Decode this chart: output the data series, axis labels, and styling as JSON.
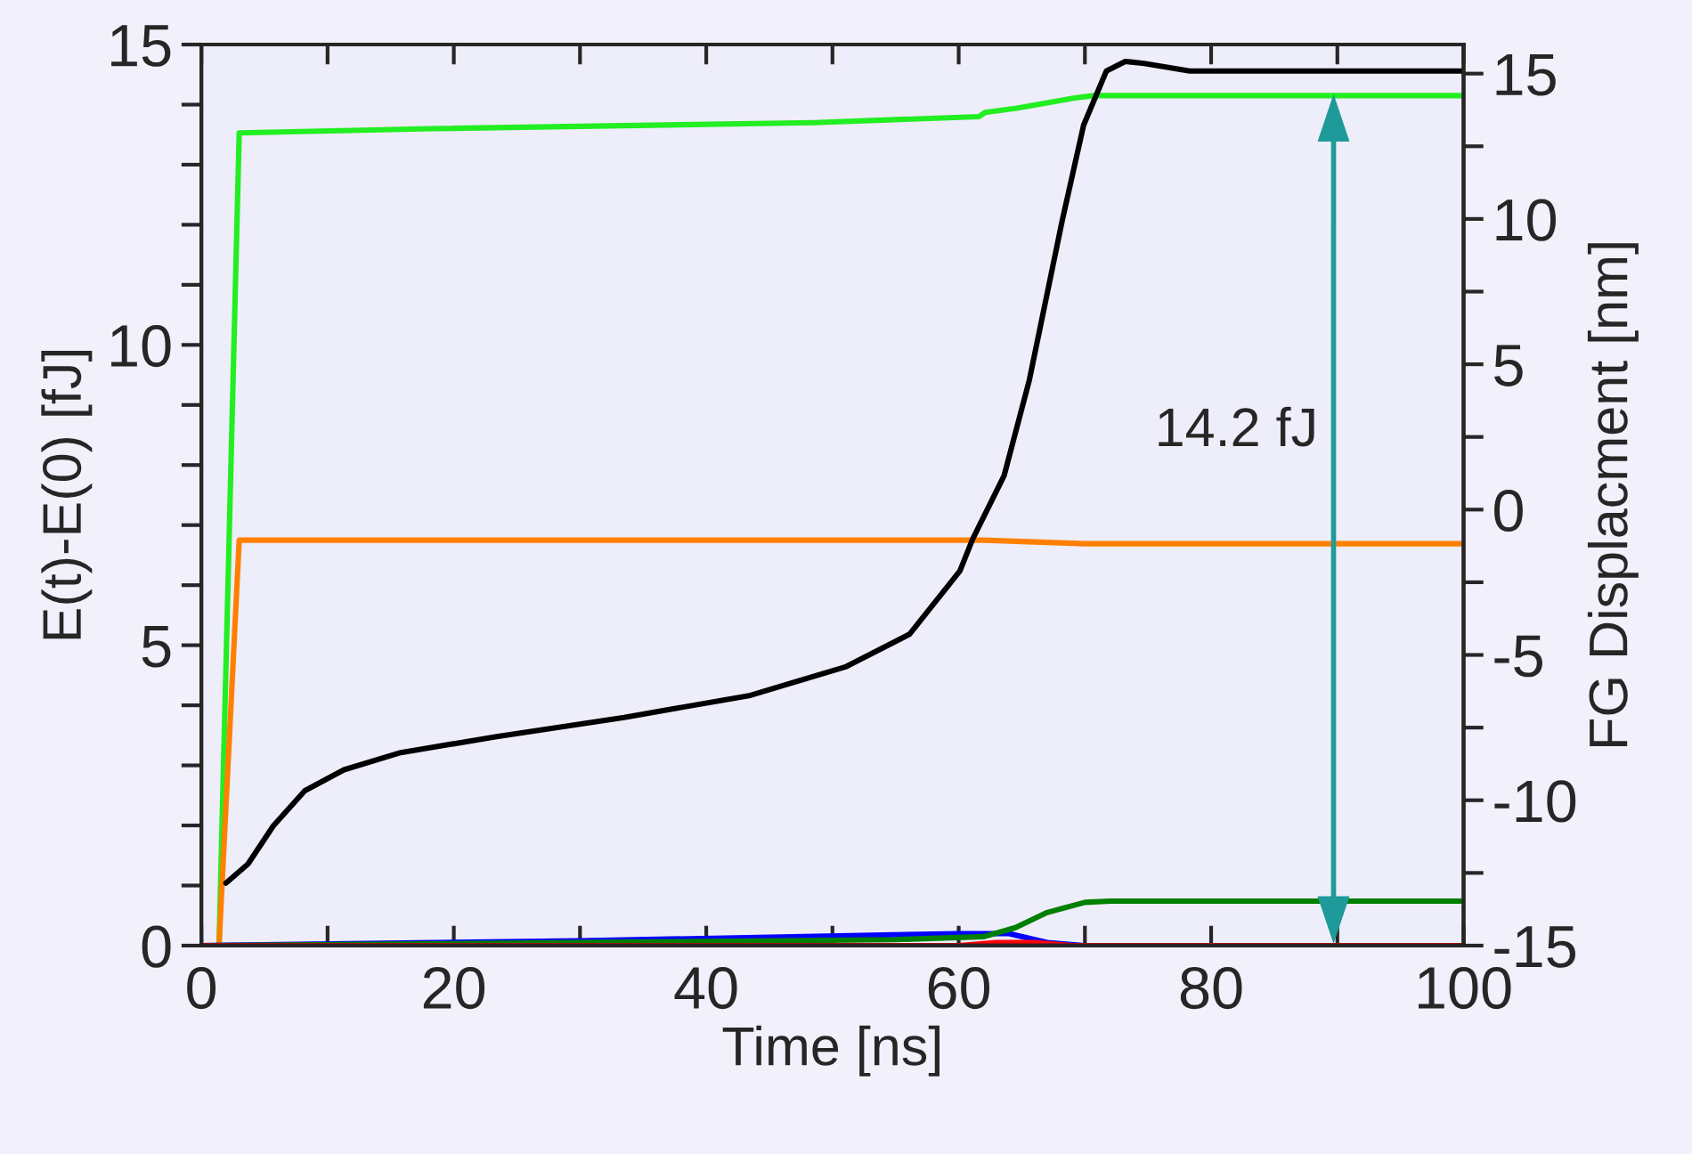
{
  "chart_data": {
    "type": "line",
    "xlabel": "Time [ns]",
    "ylabel": "E(t)-E(0) [fJ]",
    "y2label": "FG Displacment [nm]",
    "xlim": [
      0,
      100
    ],
    "ylim": [
      0,
      15
    ],
    "y2lim": [
      -15,
      16
    ],
    "xticks": [
      0,
      {
        "value": 10,
        "label": null
      },
      20,
      {
        "value": 30,
        "label": null
      },
      40,
      {
        "value": 50,
        "label": null
      },
      60,
      {
        "value": 70,
        "label": null
      },
      80,
      {
        "value": 90,
        "label": null
      },
      100
    ],
    "yticks": [
      0,
      {
        "value": 1,
        "label": null
      },
      {
        "value": 2,
        "label": null
      },
      {
        "value": 3,
        "label": null
      },
      {
        "value": 4,
        "label": null
      },
      5,
      {
        "value": 6,
        "label": null
      },
      {
        "value": 7,
        "label": null
      },
      {
        "value": 8,
        "label": null
      },
      {
        "value": 9,
        "label": null
      },
      10,
      {
        "value": 11,
        "label": null
      },
      {
        "value": 12,
        "label": null
      },
      {
        "value": 13,
        "label": null
      },
      {
        "value": 14,
        "label": null
      },
      15
    ],
    "y2ticks": [
      -15,
      {
        "value": -12.5,
        "label": null
      },
      -10,
      {
        "value": -7.5,
        "label": null
      },
      -5,
      {
        "value": -2.5,
        "label": null
      },
      0,
      {
        "value": 2.5,
        "label": null
      },
      5,
      {
        "value": 7.5,
        "label": null
      },
      10,
      {
        "value": 12.5,
        "label": null
      },
      15
    ],
    "grid": false,
    "marker": "none",
    "line_style": "solid",
    "annotations": [
      "14.2 fJ"
    ],
    "series": [
      {
        "color": "#22ee22",
        "x": [
          0,
          1.4,
          3.0,
          18.3,
          48.5,
          61.6,
          62.1,
          64.6,
          69.2,
          70.7,
          100
        ],
        "values": [
          0,
          0,
          13.53,
          13.6,
          13.7,
          13.8,
          13.87,
          13.94,
          14.11,
          14.15,
          14.15
        ]
      },
      {
        "color": "#ff8000",
        "x": [
          0,
          1.4,
          3.0,
          62,
          70,
          100
        ],
        "values": [
          0,
          0,
          6.75,
          6.75,
          6.69,
          6.69
        ]
      },
      {
        "color": "#0000ff",
        "x": [
          0,
          30,
          60,
          64,
          67,
          70,
          100
        ],
        "values": [
          0,
          0.08,
          0.2,
          0.2,
          0.05,
          0,
          0
        ]
      },
      {
        "color": "#008000",
        "x": [
          0,
          30,
          55,
          62,
          64.5,
          67,
          70,
          72,
          100
        ],
        "values": [
          0,
          0.05,
          0.1,
          0.15,
          0.3,
          0.55,
          0.72,
          0.74,
          0.74
        ]
      },
      {
        "color": "#ff0000",
        "x": [
          0,
          60,
          63,
          66,
          69,
          100
        ],
        "values": [
          0,
          0,
          0.05,
          0.05,
          0,
          0
        ]
      },
      {
        "color": "#000000",
        "axis": "y2",
        "x": [
          1.95,
          3.7,
          5.7,
          8.2,
          11.3,
          15.8,
          23.4,
          33.5,
          43.5,
          51.1,
          56.1,
          60.1,
          61.1,
          63.6,
          65.6,
          68.2,
          69.9,
          71.7,
          73.2,
          74.7,
          78.3,
          100
        ],
        "values": [
          -12.85,
          -12.19,
          -10.88,
          -9.67,
          -8.95,
          -8.36,
          -7.81,
          -7.15,
          -6.39,
          -5.4,
          -4.29,
          -2.11,
          -1.02,
          1.17,
          4.46,
          9.94,
          13.23,
          15.09,
          15.42,
          15.35,
          15.09,
          15.09
        ]
      }
    ]
  }
}
